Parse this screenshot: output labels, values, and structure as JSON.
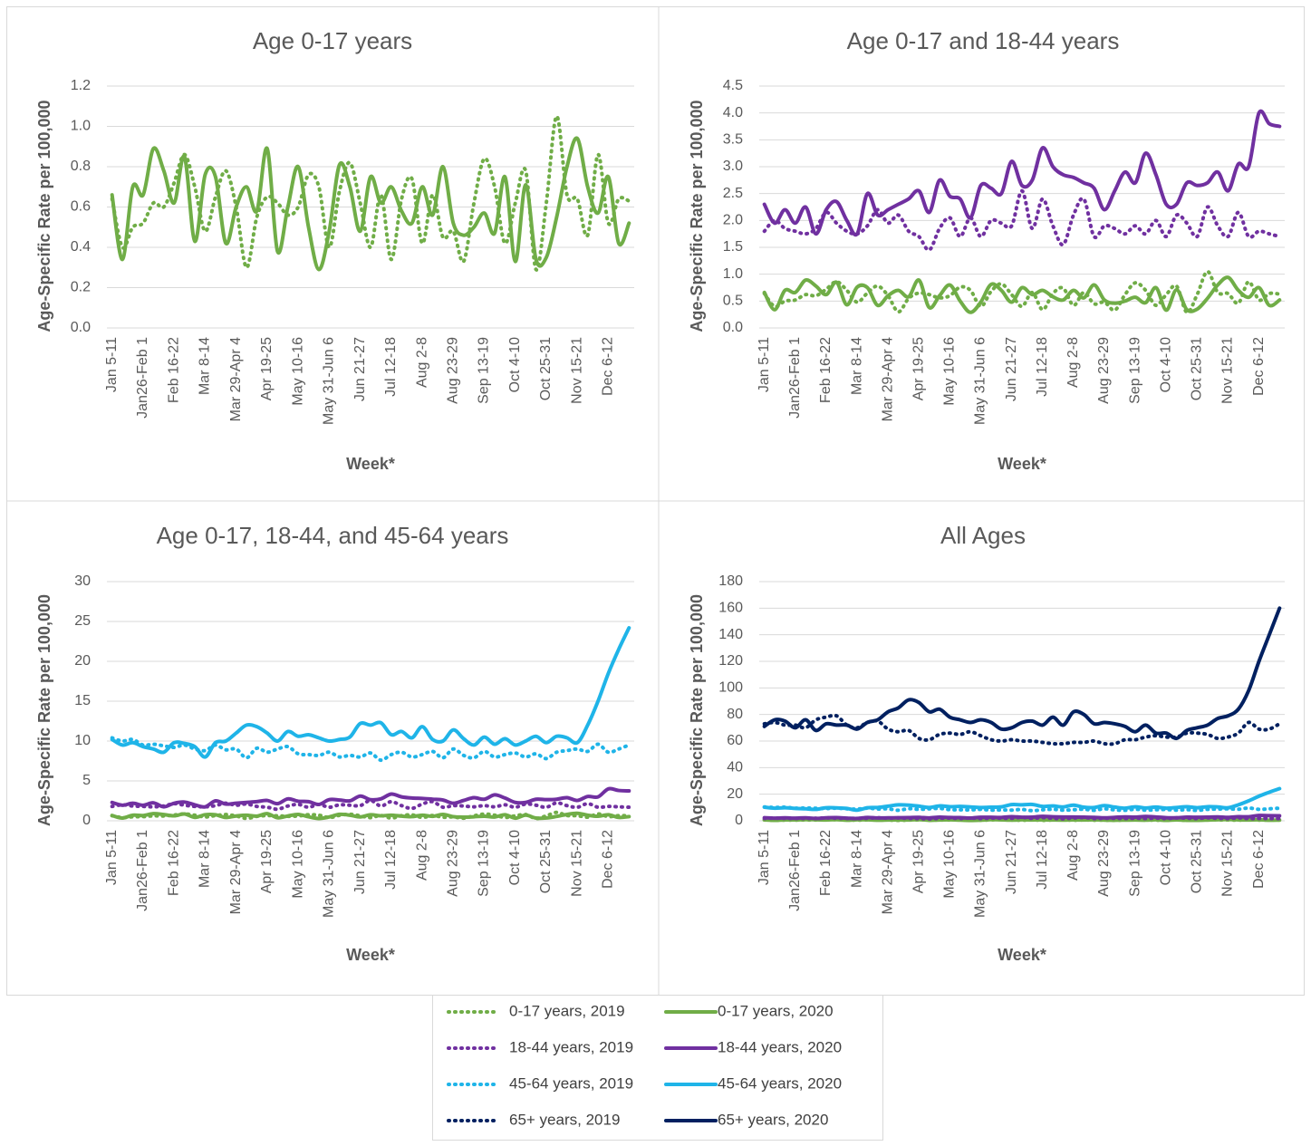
{
  "chart_data": {
    "type": "line",
    "y_label": "Age-Specific Rate per 100,000",
    "x_label": "Week*",
    "categories": [
      "Jan 5-11",
      null,
      null,
      "Jan26-Feb 1",
      null,
      null,
      "Feb 16-22",
      null,
      null,
      "Mar 8-14",
      null,
      null,
      "Mar 29-Apr 4",
      null,
      null,
      "Apr 19-25",
      null,
      null,
      "May 10-16",
      null,
      null,
      "May 31-Jun 6",
      null,
      null,
      "Jun 21-27",
      null,
      null,
      "Jul 12-18",
      null,
      null,
      "Aug 2-8",
      null,
      null,
      "Aug 23-29",
      null,
      null,
      "Sep 13-19",
      null,
      null,
      "Oct 4-10",
      null,
      null,
      "Oct 25-31",
      null,
      null,
      "Nov 15-21",
      null,
      null,
      "Dec 6-12",
      null,
      null
    ],
    "series": [
      {
        "name": "0-17 years, 2019",
        "color": "#70ad47",
        "style": "dotted",
        "values": [
          0.64,
          0.4,
          0.5,
          0.52,
          0.62,
          0.6,
          0.72,
          0.86,
          0.7,
          0.48,
          0.65,
          0.78,
          0.6,
          0.3,
          0.55,
          0.65,
          0.62,
          0.56,
          0.6,
          0.76,
          0.7,
          0.4,
          0.68,
          0.82,
          0.62,
          0.4,
          0.66,
          0.34,
          0.64,
          0.74,
          0.42,
          0.66,
          0.45,
          0.48,
          0.33,
          0.62,
          0.84,
          0.7,
          0.42,
          0.62,
          0.78,
          0.29,
          0.62,
          1.05,
          0.66,
          0.64,
          0.46,
          0.86,
          0.52,
          0.64,
          0.63
        ]
      },
      {
        "name": "0-17 years, 2020",
        "color": "#70ad47",
        "style": "solid",
        "values": [
          0.66,
          0.34,
          0.7,
          0.66,
          0.89,
          0.78,
          0.62,
          0.85,
          0.43,
          0.76,
          0.75,
          0.42,
          0.6,
          0.7,
          0.58,
          0.89,
          0.38,
          0.6,
          0.8,
          0.5,
          0.29,
          0.48,
          0.81,
          0.7,
          0.48,
          0.75,
          0.62,
          0.7,
          0.58,
          0.52,
          0.7,
          0.56,
          0.8,
          0.52,
          0.46,
          0.5,
          0.57,
          0.47,
          0.75,
          0.33,
          0.71,
          0.34,
          0.35,
          0.55,
          0.8,
          0.94,
          0.7,
          0.57,
          0.75,
          0.42,
          0.52
        ]
      },
      {
        "name": "18-44 years, 2019",
        "color": "#7030a0",
        "style": "dotted",
        "values": [
          1.8,
          2.0,
          1.85,
          1.8,
          1.75,
          1.85,
          2.15,
          1.95,
          1.8,
          1.75,
          1.9,
          2.2,
          1.95,
          2.1,
          1.8,
          1.7,
          1.45,
          1.85,
          2.05,
          1.7,
          2.05,
          1.7,
          2.0,
          1.95,
          1.9,
          2.55,
          1.85,
          2.4,
          1.9,
          1.55,
          2.1,
          2.4,
          1.7,
          1.9,
          1.85,
          1.75,
          1.9,
          1.75,
          2.0,
          1.7,
          2.1,
          1.95,
          1.7,
          2.25,
          1.9,
          1.7,
          2.15,
          1.7,
          1.8,
          1.75,
          1.7
        ]
      },
      {
        "name": "18-44 years, 2020",
        "color": "#7030a0",
        "style": "solid",
        "values": [
          2.3,
          1.95,
          2.2,
          1.95,
          2.25,
          1.75,
          2.2,
          2.35,
          2.0,
          1.75,
          2.5,
          2.1,
          2.2,
          2.3,
          2.4,
          2.55,
          2.15,
          2.75,
          2.45,
          2.4,
          2.05,
          2.65,
          2.6,
          2.5,
          3.1,
          2.65,
          2.75,
          3.35,
          3.0,
          2.85,
          2.8,
          2.7,
          2.6,
          2.2,
          2.55,
          2.9,
          2.7,
          3.25,
          2.85,
          2.3,
          2.3,
          2.7,
          2.65,
          2.7,
          2.9,
          2.55,
          3.05,
          3.0,
          4.0,
          3.8,
          3.75
        ]
      },
      {
        "name": "45-64 years, 2019",
        "color": "#1fb4e8",
        "style": "dotted",
        "values": [
          10.4,
          10.0,
          10.2,
          9.5,
          9.6,
          9.4,
          9.2,
          9.5,
          9.0,
          8.8,
          9.5,
          8.9,
          9.0,
          7.9,
          9.1,
          8.6,
          9.0,
          9.3,
          8.4,
          8.3,
          8.2,
          8.6,
          8.0,
          8.2,
          8.0,
          8.5,
          7.6,
          8.3,
          8.6,
          8.0,
          8.3,
          8.7,
          7.9,
          9.0,
          8.2,
          7.9,
          8.7,
          8.0,
          8.3,
          8.5,
          8.0,
          8.4,
          7.8,
          8.6,
          8.8,
          9.0,
          8.7,
          9.6,
          8.6,
          9.0,
          9.5
        ]
      },
      {
        "name": "45-64 years, 2020",
        "color": "#1fb4e8",
        "style": "solid",
        "values": [
          10.2,
          9.5,
          9.8,
          9.3,
          9.0,
          8.6,
          9.8,
          9.7,
          9.3,
          8.0,
          9.8,
          10.0,
          11.0,
          12.0,
          11.8,
          11.0,
          10.0,
          11.2,
          10.6,
          10.8,
          10.4,
          10.0,
          10.2,
          10.5,
          12.2,
          12.0,
          12.3,
          10.8,
          11.2,
          10.4,
          11.8,
          10.2,
          10.0,
          11.4,
          10.3,
          9.5,
          10.5,
          9.6,
          10.3,
          9.5,
          10.0,
          10.6,
          9.8,
          10.6,
          10.4,
          9.8,
          12.0,
          15.0,
          18.5,
          21.5,
          24.2
        ]
      },
      {
        "name": "65+ years, 2019",
        "color": "#002060",
        "style": "dotted",
        "values": [
          73,
          74,
          72,
          72,
          70,
          76,
          78,
          79,
          72,
          70,
          74,
          75,
          69,
          67,
          68,
          62,
          61,
          65,
          66,
          65,
          67,
          64,
          61,
          60,
          61,
          60,
          60,
          59,
          58,
          58,
          59,
          59,
          60,
          58,
          58,
          61,
          61,
          63,
          64,
          63,
          63,
          66,
          66,
          65,
          62,
          63,
          66,
          74,
          69,
          69,
          73
        ]
      },
      {
        "name": "65+ years, 2020",
        "color": "#002060",
        "style": "solid",
        "values": [
          71,
          76,
          75,
          70,
          76,
          68,
          73,
          72,
          72,
          69,
          74,
          76,
          82,
          85,
          91,
          89,
          82,
          84,
          78,
          76,
          74,
          76,
          74,
          69,
          70,
          74,
          75,
          72,
          78,
          72,
          82,
          80,
          73,
          74,
          73,
          71,
          67,
          72,
          66,
          66,
          62,
          68,
          70,
          72,
          77,
          79,
          84,
          98,
          120,
          140,
          160
        ]
      }
    ],
    "grid": true,
    "panels": [
      {
        "title": "Age 0-17 years",
        "ylim": [
          0,
          1.2
        ],
        "yticks": [
          {
            "value": 0,
            "label": "0.0"
          },
          0.2,
          0.4,
          0.6,
          0.8,
          {
            "value": 1,
            "label": "1.0"
          },
          1.2
        ]
      },
      {
        "title": "Age 0-17 and 18-44 years",
        "ylim": [
          0,
          4.5
        ],
        "yticks": [
          {
            "value": 0,
            "label": "0.0"
          },
          0.5,
          {
            "value": 1,
            "label": "1.0"
          },
          1.5,
          {
            "value": 2,
            "label": "2.0"
          },
          2.5,
          {
            "value": 3,
            "label": "3.0"
          },
          3.5,
          {
            "value": 4,
            "label": "4.0"
          },
          4.5
        ]
      },
      {
        "title": "Age 0-17, 18-44, and 45-64 years",
        "ylim": [
          0,
          30
        ],
        "yticks": [
          0,
          5,
          10,
          15,
          20,
          25,
          30
        ]
      },
      {
        "title": "All Ages",
        "ylim": [
          0,
          180
        ],
        "yticks": [
          0,
          20,
          40,
          60,
          80,
          100,
          120,
          140,
          160,
          180
        ]
      }
    ]
  }
}
